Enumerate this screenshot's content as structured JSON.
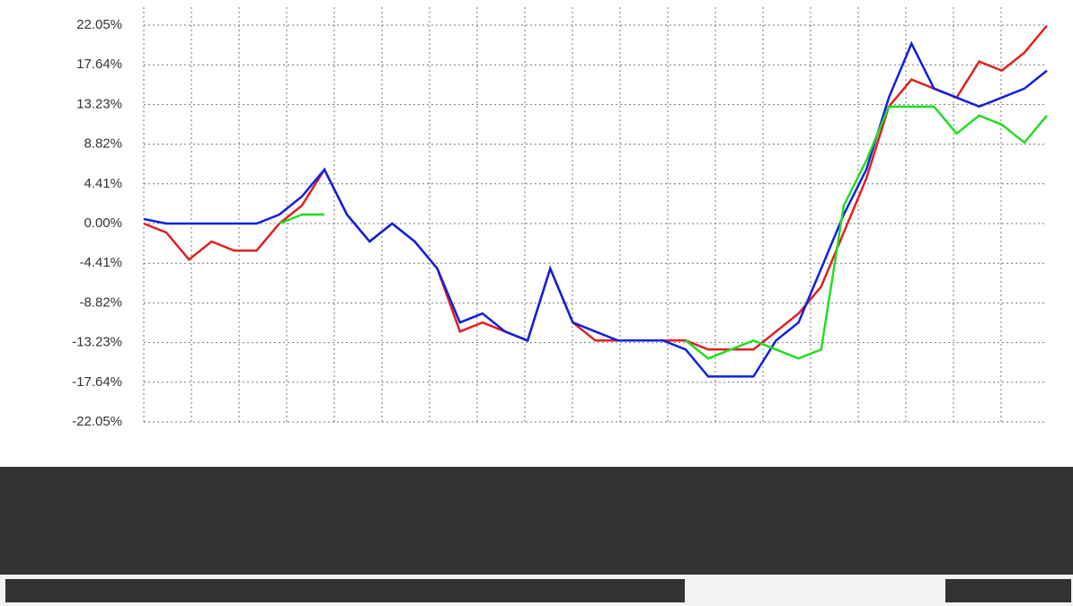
{
  "chart_data": {
    "type": "line",
    "ylim": [
      -22.05,
      22.05
    ],
    "yticks": [
      {
        "value": 22.05,
        "label": "22.05%"
      },
      {
        "value": 17.64,
        "label": "17.64%"
      },
      {
        "value": 13.23,
        "label": "13.23%"
      },
      {
        "value": 8.82,
        "label": "8.82%"
      },
      {
        "value": 4.41,
        "label": "4.41%"
      },
      {
        "value": 0,
        "label": "0.00%"
      },
      {
        "value": -4.41,
        "label": "-4.41%"
      },
      {
        "value": -8.82,
        "label": "-8.82%"
      },
      {
        "value": -13.23,
        "label": "-13.23%"
      },
      {
        "value": -17.64,
        "label": "-17.64%"
      },
      {
        "value": -22.05,
        "label": "-22.05%"
      }
    ],
    "grid": true,
    "series": [
      {
        "color": "#e02020",
        "values": [
          0,
          -1,
          -4,
          -2,
          -3,
          -3,
          0,
          2,
          6,
          1,
          -2,
          0,
          -2,
          -5,
          -12,
          -11,
          -12,
          -13,
          -5,
          -11,
          -13,
          -13,
          -13,
          -13,
          -13,
          -14,
          -14,
          -14,
          -12,
          -10,
          -7,
          -1,
          5,
          13,
          16,
          15,
          14,
          18,
          17,
          19,
          22
        ]
      },
      {
        "color": "#1020e0",
        "values": [
          0.5,
          0,
          0,
          0,
          0,
          0,
          1,
          3,
          6,
          1,
          -2,
          0,
          -2,
          -5,
          -11,
          -10,
          -12,
          -13,
          -5,
          -11,
          -12,
          -13,
          -13,
          -13,
          -14,
          -17,
          -17,
          -17,
          -13,
          -11,
          -5,
          1,
          6,
          14,
          20,
          15,
          14,
          13,
          14,
          15,
          17
        ]
      },
      {
        "color": "#22dd22",
        "values": [
          null,
          null,
          null,
          null,
          null,
          null,
          0,
          1,
          1,
          null,
          null,
          null,
          null,
          null,
          null,
          null,
          null,
          null,
          null,
          null,
          null,
          null,
          null,
          null,
          -13,
          -15,
          -14,
          -13,
          -14,
          -15,
          -14,
          2,
          7,
          13,
          13,
          13,
          10,
          12,
          11,
          9,
          12
        ]
      }
    ]
  }
}
